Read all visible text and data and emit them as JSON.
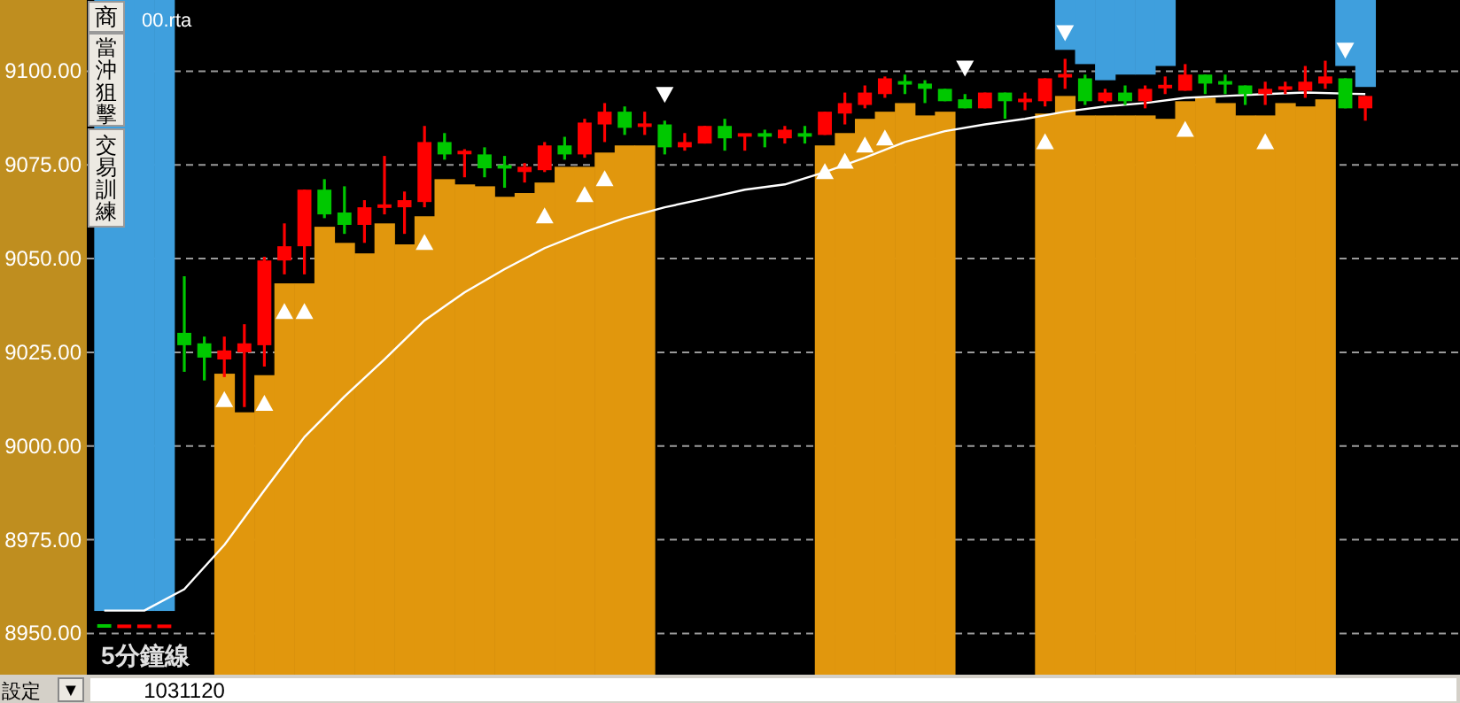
{
  "chart_data": {
    "type": "candlestick",
    "categories": [
      null,
      null,
      null,
      null,
      "1031120",
      null,
      null,
      null,
      null,
      null,
      null,
      null,
      null,
      null,
      null,
      null,
      null,
      null,
      null,
      null,
      null,
      null,
      null,
      null,
      null,
      null,
      null,
      null,
      null,
      null,
      null,
      null,
      null,
      null,
      null,
      null,
      null,
      null,
      null,
      null,
      null,
      null,
      null,
      null,
      null,
      null,
      null,
      null,
      null,
      null,
      null,
      null,
      null,
      null,
      null,
      null,
      null,
      null,
      null,
      null,
      null,
      null,
      null,
      null
    ],
    "ohlc": [
      [
        8952.0,
        8952.0,
        8951.9,
        8951.9
      ],
      [
        8951.9,
        8951.9,
        8951.9,
        8951.9
      ],
      [
        8951.9,
        8951.9,
        8951.9,
        8951.9
      ],
      [
        8951.9,
        8951.9,
        8951.9,
        8951.9
      ],
      [
        9030.2,
        9045.3,
        9019.8,
        9026.9
      ],
      [
        9027.4,
        9029.2,
        9017.5,
        9023.6
      ],
      [
        9023.1,
        9029.2,
        9018.4,
        9025.5
      ],
      [
        9025.0,
        9032.5,
        9010.4,
        9027.4
      ],
      [
        9026.9,
        9050.5,
        9021.2,
        9049.5
      ],
      [
        9049.5,
        9059.4,
        9045.8,
        9053.3
      ],
      [
        9053.3,
        9068.4,
        9045.8,
        9068.4
      ],
      [
        9068.4,
        9071.2,
        9060.8,
        9061.8
      ],
      [
        9062.3,
        9069.3,
        9056.6,
        9059.0
      ],
      [
        9059.0,
        9065.6,
        9054.2,
        9063.7
      ],
      [
        9063.5,
        9077.4,
        9061.8,
        9064.0
      ],
      [
        9063.7,
        9067.9,
        9056.6,
        9065.6
      ],
      [
        9065.1,
        9085.4,
        9063.7,
        9081.1
      ],
      [
        9081.1,
        9083.5,
        9076.4,
        9077.8
      ],
      [
        9077.8,
        9079.2,
        9071.7,
        9078.3
      ],
      [
        9077.8,
        9079.7,
        9071.7,
        9074.1
      ],
      [
        9074.5,
        9077.4,
        9068.9,
        9073.6
      ],
      [
        9073.1,
        9075.5,
        9070.3,
        9074.5
      ],
      [
        9073.6,
        9081.1,
        9073.1,
        9080.2
      ],
      [
        9080.2,
        9082.5,
        9076.4,
        9077.8
      ],
      [
        9077.8,
        9087.3,
        9076.9,
        9086.3
      ],
      [
        9085.8,
        9091.5,
        9081.1,
        9089.2
      ],
      [
        9089.2,
        9090.6,
        9083.0,
        9084.9
      ],
      [
        9085.3,
        9089.2,
        9083.0,
        9085.6
      ],
      [
        9085.8,
        9086.8,
        9077.8,
        9079.7
      ],
      [
        9079.7,
        9083.5,
        9078.8,
        9081.1
      ],
      [
        9080.7,
        9085.4,
        9080.7,
        9085.4
      ],
      [
        9085.4,
        9087.3,
        9078.8,
        9082.1
      ],
      [
        9082.8,
        9083.0,
        9078.8,
        9083.0
      ],
      [
        9083.0,
        9084.4,
        9079.7,
        9082.8
      ],
      [
        9082.1,
        9085.4,
        9080.7,
        9084.4
      ],
      [
        9083.0,
        9085.4,
        9080.7,
        9082.8
      ],
      [
        9083.0,
        9089.2,
        9083.0,
        9089.2
      ],
      [
        9088.7,
        9094.3,
        9085.8,
        9091.5
      ],
      [
        9091.0,
        9096.2,
        9090.1,
        9094.3
      ],
      [
        9093.9,
        9098.6,
        9092.9,
        9098.1
      ],
      [
        9096.9,
        9099.1,
        9093.9,
        9096.5
      ],
      [
        9096.7,
        9097.6,
        9091.5,
        9095.3
      ],
      [
        9095.3,
        9095.3,
        9092.0,
        9092.0
      ],
      [
        9092.5,
        9093.9,
        9090.1,
        9090.1
      ],
      [
        9090.1,
        9094.3,
        9090.1,
        9094.3
      ],
      [
        9094.3,
        9094.3,
        9087.3,
        9092.0
      ],
      [
        9091.8,
        9094.3,
        9089.6,
        9092.2
      ],
      [
        9092.0,
        9098.1,
        9090.6,
        9098.1
      ],
      [
        9098.4,
        9103.3,
        9095.3,
        9098.8
      ],
      [
        9098.1,
        9099.1,
        9091.0,
        9092.0
      ],
      [
        9092.0,
        9095.3,
        9091.5,
        9094.3
      ],
      [
        9094.3,
        9096.2,
        9091.0,
        9092.0
      ],
      [
        9092.0,
        9096.2,
        9090.1,
        9095.3
      ],
      [
        9095.5,
        9098.6,
        9093.9,
        9095.9
      ],
      [
        9094.8,
        9101.9,
        9094.8,
        9099.1
      ],
      [
        9099.1,
        9099.1,
        9093.9,
        9096.7
      ],
      [
        9096.9,
        9099.1,
        9093.9,
        9096.5
      ],
      [
        9096.2,
        9096.2,
        9091.0,
        9093.9
      ],
      [
        9093.9,
        9097.2,
        9091.0,
        9095.3
      ],
      [
        9095.1,
        9097.2,
        9093.9,
        9095.5
      ],
      [
        9094.8,
        9101.4,
        9092.9,
        9097.2
      ],
      [
        9096.7,
        9102.8,
        9095.3,
        9098.6
      ],
      [
        9098.1,
        9098.1,
        9090.1,
        9090.1
      ],
      [
        9090.1,
        9093.4,
        9086.8,
        9093.4
      ]
    ],
    "colors": [
      "#00c800",
      "#ff0000",
      "#ff0000",
      "#ff0000",
      "#00c800",
      "#00c800",
      "#ff0000",
      "#ff0000",
      "#ff0000",
      "#ff0000",
      "#ff0000",
      "#00c800",
      "#00c800",
      "#ff0000",
      "#ff0000",
      "#ff0000",
      "#ff0000",
      "#00c800",
      "#ff0000",
      "#00c800",
      "#00c800",
      "#ff0000",
      "#ff0000",
      "#00c800",
      "#ff0000",
      "#ff0000",
      "#00c800",
      "#ff0000",
      "#00c800",
      "#ff0000",
      "#ff0000",
      "#00c800",
      "#ff0000",
      "#00c800",
      "#ff0000",
      "#00c800",
      "#ff0000",
      "#ff0000",
      "#ff0000",
      "#ff0000",
      "#00c800",
      "#00c800",
      "#00c800",
      "#00c800",
      "#ff0000",
      "#00c800",
      "#ff0000",
      "#ff0000",
      "#ff0000",
      "#00c800",
      "#ff0000",
      "#00c800",
      "#ff0000",
      "#ff0000",
      "#ff0000",
      "#00c800",
      "#00c800",
      "#00c800",
      "#ff0000",
      "#ff0000",
      "#ff0000",
      "#ff0000",
      "#00c800",
      "#ff0000"
    ],
    "series": [
      {
        "type": "bar",
        "color": "#3f9fdd",
        "base": [
          8956.0,
          8956.0,
          8956.0,
          8956.0,
          null,
          null,
          null,
          null,
          null,
          null,
          null,
          null,
          null,
          null,
          null,
          null,
          null,
          null,
          null,
          null,
          null,
          null,
          null,
          null,
          null,
          null,
          null,
          null,
          null,
          null,
          null,
          null,
          null,
          null,
          null,
          null,
          null,
          null,
          null,
          null,
          null,
          null,
          null,
          null,
          null,
          null,
          null,
          null,
          9105.7,
          9101.9,
          9097.6,
          9099.1,
          9099.1,
          9101.4,
          null,
          null,
          null,
          null,
          null,
          null,
          null,
          null,
          9101.4,
          9095.8
        ],
        "values": [
          163.0,
          163.0,
          163.0,
          163.0,
          null,
          null,
          null,
          null,
          null,
          null,
          null,
          null,
          null,
          null,
          null,
          null,
          null,
          null,
          null,
          null,
          null,
          null,
          null,
          null,
          null,
          null,
          null,
          null,
          null,
          null,
          null,
          null,
          null,
          null,
          null,
          null,
          null,
          null,
          null,
          null,
          null,
          null,
          null,
          null,
          null,
          null,
          null,
          null,
          13.3,
          17.1,
          21.4,
          19.9,
          19.9,
          17.6,
          null,
          null,
          null,
          null,
          null,
          null,
          null,
          null,
          17.6,
          23.2
        ]
      },
      {
        "type": "bar",
        "color": "#e1970d",
        "base": [
          null,
          null,
          null,
          null,
          null,
          null,
          8939,
          8939,
          8939,
          8939,
          8939,
          8939,
          8939,
          8939,
          8939,
          8939,
          8939,
          8939,
          8939,
          8939,
          8939,
          8939,
          8939,
          8939,
          8939,
          8939,
          8939,
          8939,
          null,
          null,
          null,
          null,
          null,
          null,
          null,
          null,
          8939,
          8939,
          8939,
          8939,
          8939,
          8939,
          8939,
          null,
          null,
          null,
          null,
          8939,
          8939,
          8939,
          8939,
          8939,
          8939,
          8939,
          8939,
          8939,
          8939,
          8939,
          8939,
          8939,
          8939,
          8939,
          null,
          null
        ],
        "values": [
          null,
          null,
          null,
          null,
          null,
          null,
          80.3,
          70.0,
          79.9,
          104.4,
          104.4,
          119.5,
          115.2,
          112.4,
          120.4,
          114.8,
          122.3,
          132.2,
          130.8,
          130.3,
          127.5,
          128.5,
          131.3,
          135.5,
          135.5,
          139.3,
          141.2,
          141.2,
          null,
          null,
          null,
          null,
          null,
          null,
          null,
          null,
          141.2,
          144.5,
          148.3,
          150.2,
          152.5,
          149.2,
          150.2,
          null,
          null,
          null,
          null,
          149.7,
          154.4,
          149.2,
          149.2,
          149.2,
          149.2,
          148.3,
          153.0,
          153.9,
          152.5,
          149.2,
          149.2,
          152.5,
          151.6,
          153.5,
          null,
          null
        ]
      },
      {
        "type": "line",
        "color": "#ffffff",
        "values": [
          8956.1,
          null,
          8956.1,
          null,
          8961.8,
          null,
          8973.6,
          null,
          8988.2,
          null,
          9002.4,
          null,
          9013.2,
          null,
          9023.1,
          null,
          9033.5,
          null,
          9041.0,
          null,
          9047.2,
          null,
          9052.8,
          null,
          9057.1,
          null,
          9060.8,
          null,
          9063.7,
          null,
          9066.0,
          null,
          9068.4,
          null,
          9069.8,
          null,
          9073.1,
          null,
          9076.9,
          null,
          9081.1,
          null,
          9084.0,
          null,
          9085.8,
          null,
          9087.3,
          null,
          9089.2,
          null,
          9090.6,
          null,
          9091.5,
          null,
          9092.9,
          null,
          9093.4,
          null,
          9093.9,
          null,
          9094.3,
          null,
          null,
          9093.9
        ]
      },
      {
        "type": "scatter",
        "color": "#ffffff",
        "marker": "triangle",
        "values": [
          null,
          null,
          null,
          null,
          null,
          null,
          9012.3,
          null,
          9011.3,
          9035.8,
          9035.8,
          null,
          null,
          null,
          null,
          null,
          9054.2,
          null,
          null,
          null,
          null,
          null,
          9061.3,
          null,
          9067.0,
          9071.2,
          null,
          null,
          null,
          null,
          null,
          null,
          null,
          null,
          null,
          null,
          9073.1,
          9075.9,
          9080.2,
          9082.1,
          null,
          null,
          null,
          null,
          null,
          null,
          null,
          9081.1,
          null,
          null,
          null,
          null,
          null,
          null,
          9084.4,
          null,
          null,
          null,
          9081.1,
          null,
          null,
          null,
          null,
          null
        ]
      },
      {
        "type": "scatter",
        "color": "#ffffff",
        "marker": "triangle_down",
        "values": [
          null,
          null,
          null,
          null,
          null,
          null,
          null,
          null,
          null,
          null,
          null,
          null,
          null,
          null,
          null,
          null,
          null,
          null,
          null,
          null,
          null,
          null,
          null,
          null,
          null,
          null,
          null,
          null,
          9093.9,
          null,
          null,
          null,
          null,
          null,
          null,
          null,
          null,
          null,
          null,
          null,
          null,
          null,
          null,
          9100.9,
          null,
          null,
          null,
          null,
          9110.4,
          null,
          null,
          null,
          null,
          null,
          null,
          null,
          null,
          null,
          null,
          null,
          null,
          null,
          9105.7,
          null
        ]
      }
    ],
    "ylim": [
      8939,
      9119
    ],
    "yticks": [
      {
        "value": 8950,
        "label": "8950.00"
      },
      {
        "value": 8975,
        "label": "8975.00"
      },
      {
        "value": 9000,
        "label": "9000.00"
      },
      {
        "value": 9025,
        "label": "9025.00"
      },
      {
        "value": 9050,
        "label": "9050.00"
      },
      {
        "value": 9075,
        "label": "9075.00"
      },
      {
        "value": 9100,
        "label": "9100.00"
      }
    ],
    "grid": "y",
    "annotations": [
      "00.rta",
      "商",
      "當沖狙擊",
      "交易訓練",
      "5分鐘線",
      "設定",
      "▼"
    ]
  }
}
